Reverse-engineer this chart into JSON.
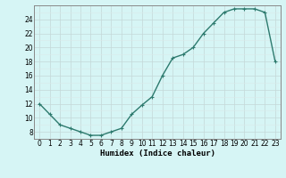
{
  "x": [
    0,
    1,
    2,
    3,
    4,
    5,
    6,
    7,
    8,
    9,
    10,
    11,
    12,
    13,
    14,
    15,
    16,
    17,
    18,
    19,
    20,
    21,
    22,
    23
  ],
  "y": [
    12,
    10.5,
    9,
    8.5,
    8,
    7.5,
    7.5,
    8,
    8.5,
    10.5,
    11.8,
    13,
    16,
    18.5,
    19,
    20,
    22,
    23.5,
    25,
    25.5,
    25.5,
    25.5,
    25,
    18
  ],
  "line_color": "#2d7a6e",
  "marker": "+",
  "marker_color": "#2d7a6e",
  "bg_color": "#d6f5f5",
  "grid_color_major": "#c4d8d8",
  "grid_color_minor": "#daeaea",
  "xlabel": "Humidex (Indice chaleur)",
  "xlim": [
    -0.5,
    23.5
  ],
  "ylim": [
    7,
    26
  ],
  "yticks": [
    8,
    10,
    12,
    14,
    16,
    18,
    20,
    22,
    24
  ],
  "xticks": [
    0,
    1,
    2,
    3,
    4,
    5,
    6,
    7,
    8,
    9,
    10,
    11,
    12,
    13,
    14,
    15,
    16,
    17,
    18,
    19,
    20,
    21,
    22,
    23
  ],
  "xlabel_fontsize": 6.5,
  "tick_fontsize": 5.5,
  "linewidth": 1.0,
  "markersize": 3.5
}
